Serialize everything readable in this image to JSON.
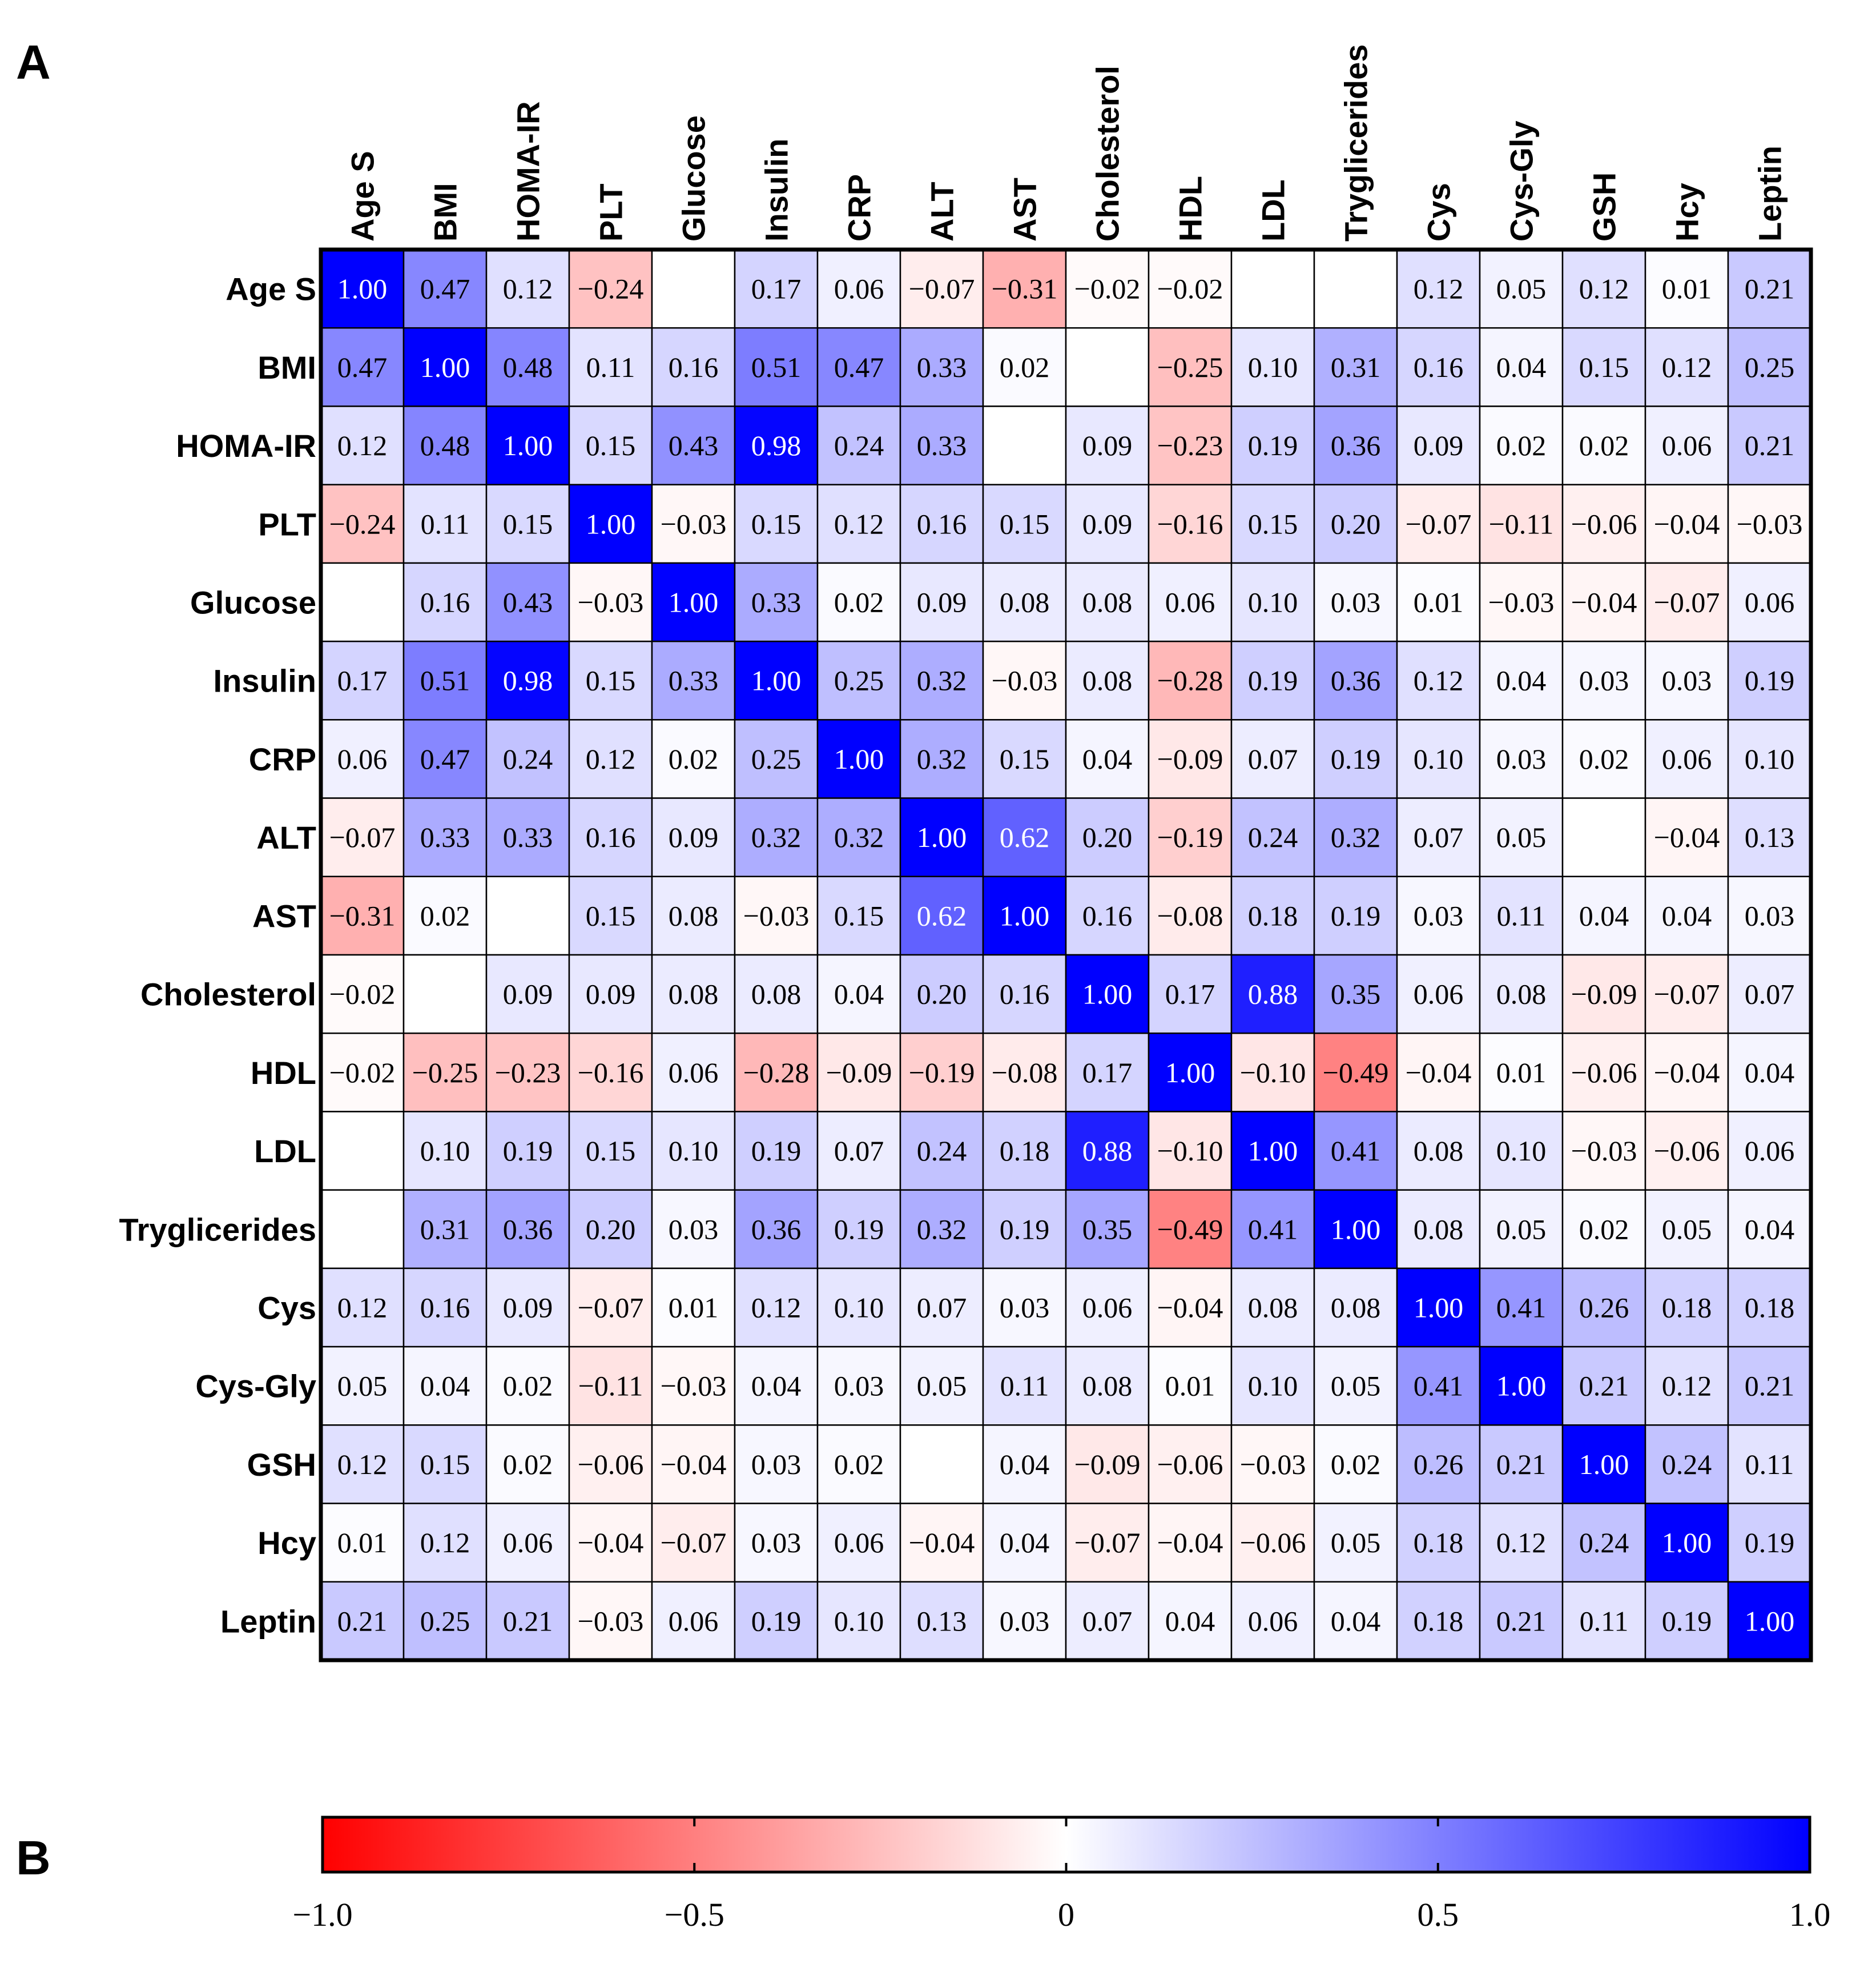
{
  "panel_labels": {
    "a": "A",
    "b": "B"
  },
  "chart_data": {
    "type": "heatmap",
    "title": "",
    "variables": [
      "Age S",
      "BMI",
      "HOMA-IR",
      "PLT",
      "Glucose",
      "Insulin",
      "CRP",
      "ALT",
      "AST",
      "Cholesterol",
      "HDL",
      "LDL",
      "Tryglicerides",
      "Cys",
      "Cys-Gly",
      "GSH",
      "Hcy",
      "Leptin"
    ],
    "values": [
      [
        1.0,
        0.47,
        0.12,
        -0.24,
        null,
        0.17,
        0.06,
        -0.07,
        -0.31,
        -0.02,
        -0.02,
        null,
        null,
        0.12,
        0.05,
        0.12,
        0.01,
        0.21
      ],
      [
        0.47,
        1.0,
        0.48,
        0.11,
        0.16,
        0.51,
        0.47,
        0.33,
        0.02,
        null,
        -0.25,
        0.1,
        0.31,
        0.16,
        0.04,
        0.15,
        0.12,
        0.25
      ],
      [
        0.12,
        0.48,
        1.0,
        0.15,
        0.43,
        0.98,
        0.24,
        0.33,
        null,
        0.09,
        -0.23,
        0.19,
        0.36,
        0.09,
        0.02,
        0.02,
        0.06,
        0.21
      ],
      [
        -0.24,
        0.11,
        0.15,
        1.0,
        -0.03,
        0.15,
        0.12,
        0.16,
        0.15,
        0.09,
        -0.16,
        0.15,
        0.2,
        -0.07,
        -0.11,
        -0.06,
        -0.04,
        -0.03
      ],
      [
        null,
        0.16,
        0.43,
        -0.03,
        1.0,
        0.33,
        0.02,
        0.09,
        0.08,
        0.08,
        0.06,
        0.1,
        0.03,
        0.01,
        -0.03,
        -0.04,
        -0.07,
        0.06
      ],
      [
        0.17,
        0.51,
        0.98,
        0.15,
        0.33,
        1.0,
        0.25,
        0.32,
        -0.03,
        0.08,
        -0.28,
        0.19,
        0.36,
        0.12,
        0.04,
        0.03,
        0.03,
        0.19
      ],
      [
        0.06,
        0.47,
        0.24,
        0.12,
        0.02,
        0.25,
        1.0,
        0.32,
        0.15,
        0.04,
        -0.09,
        0.07,
        0.19,
        0.1,
        0.03,
        0.02,
        0.06,
        0.1
      ],
      [
        -0.07,
        0.33,
        0.33,
        0.16,
        0.09,
        0.32,
        0.32,
        1.0,
        0.62,
        0.2,
        -0.19,
        0.24,
        0.32,
        0.07,
        0.05,
        null,
        -0.04,
        0.13
      ],
      [
        -0.31,
        0.02,
        null,
        0.15,
        0.08,
        -0.03,
        0.15,
        0.62,
        1.0,
        0.16,
        -0.08,
        0.18,
        0.19,
        0.03,
        0.11,
        0.04,
        0.04,
        0.03
      ],
      [
        -0.02,
        null,
        0.09,
        0.09,
        0.08,
        0.08,
        0.04,
        0.2,
        0.16,
        1.0,
        0.17,
        0.88,
        0.35,
        0.06,
        0.08,
        -0.09,
        -0.07,
        0.07
      ],
      [
        -0.02,
        -0.25,
        -0.23,
        -0.16,
        0.06,
        -0.28,
        -0.09,
        -0.19,
        -0.08,
        0.17,
        1.0,
        -0.1,
        -0.49,
        -0.04,
        0.01,
        -0.06,
        -0.04,
        0.04
      ],
      [
        null,
        0.1,
        0.19,
        0.15,
        0.1,
        0.19,
        0.07,
        0.24,
        0.18,
        0.88,
        -0.1,
        1.0,
        0.41,
        0.08,
        0.1,
        -0.03,
        -0.06,
        0.06
      ],
      [
        null,
        0.31,
        0.36,
        0.2,
        0.03,
        0.36,
        0.19,
        0.32,
        0.19,
        0.35,
        -0.49,
        0.41,
        1.0,
        0.08,
        0.05,
        0.02,
        0.05,
        0.04
      ],
      [
        0.12,
        0.16,
        0.09,
        -0.07,
        0.01,
        0.12,
        0.1,
        0.07,
        0.03,
        0.06,
        -0.04,
        0.08,
        0.08,
        1.0,
        0.41,
        0.26,
        0.18,
        0.18
      ],
      [
        0.05,
        0.04,
        0.02,
        -0.11,
        -0.03,
        0.04,
        0.03,
        0.05,
        0.11,
        0.08,
        0.01,
        0.1,
        0.05,
        0.41,
        1.0,
        0.21,
        0.12,
        0.21
      ],
      [
        0.12,
        0.15,
        0.02,
        -0.06,
        -0.04,
        0.03,
        0.02,
        null,
        0.04,
        -0.09,
        -0.06,
        -0.03,
        0.02,
        0.26,
        0.21,
        1.0,
        0.24,
        0.11
      ],
      [
        0.01,
        0.12,
        0.06,
        -0.04,
        -0.07,
        0.03,
        0.06,
        -0.04,
        0.04,
        -0.07,
        -0.04,
        -0.06,
        0.05,
        0.18,
        0.12,
        0.24,
        1.0,
        0.19
      ],
      [
        0.21,
        0.25,
        0.21,
        -0.03,
        0.06,
        0.19,
        0.1,
        0.13,
        0.03,
        0.07,
        0.04,
        0.06,
        0.04,
        0.18,
        0.21,
        0.11,
        0.19,
        1.0
      ]
    ],
    "value_range": [
      -1.0,
      1.0
    ],
    "colorscale": {
      "negative": "#ff0000",
      "zero": "#ffffff",
      "positive": "#0000ff"
    },
    "colorbar": {
      "ticks": [
        -1.0,
        -0.5,
        0,
        0.5,
        1.0
      ],
      "tick_labels": [
        "−1.0",
        "−0.5",
        "0",
        "0.5",
        "1.0"
      ]
    }
  }
}
